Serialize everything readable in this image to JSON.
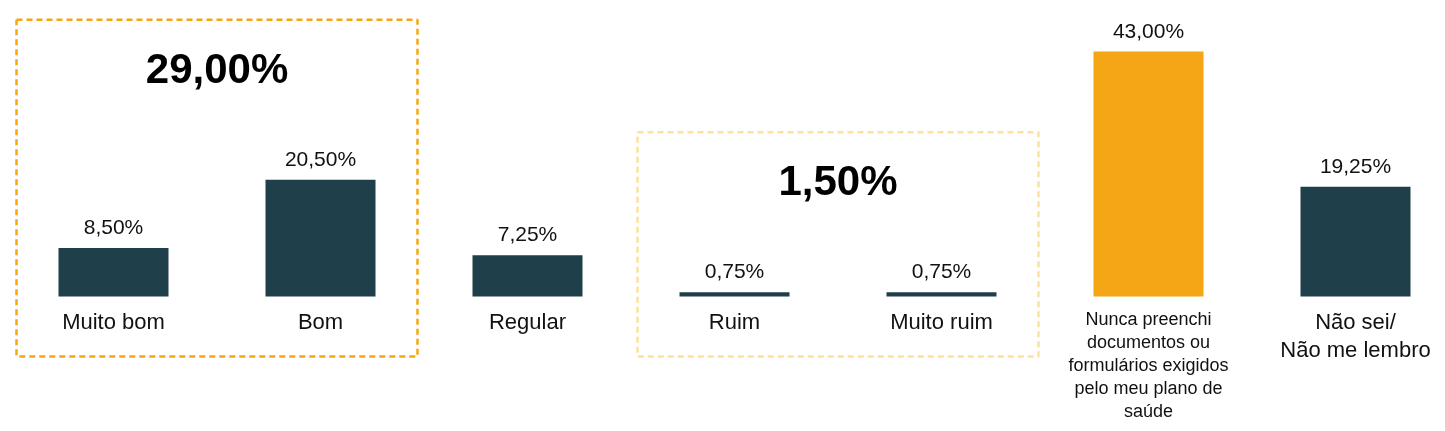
{
  "chart_data": {
    "type": "bar",
    "categories": [
      "Muito bom",
      "Bom",
      "Regular",
      "Ruim",
      "Muito ruim",
      "Nunca preenchi\ndocumentos ou\nformulários exigidos\npelo meu plano de\nsaúde",
      "Não sei/\nNão me lembro"
    ],
    "values": [
      8.5,
      20.5,
      7.25,
      0.75,
      0.75,
      43,
      19.25
    ],
    "colors": [
      "#1f3f4a",
      "#1f3f4a",
      "#1f3f4a",
      "#1f3f4a",
      "#1f3f4a",
      "#f4a614",
      "#1f3f4a"
    ],
    "value_labels": [
      "8,50%",
      "20,50%",
      "7,25%",
      "0,75%",
      "0,75%",
      "43,00%",
      "19,25%"
    ],
    "annotations": [
      "29,00%",
      "1,50%"
    ]
  }
}
